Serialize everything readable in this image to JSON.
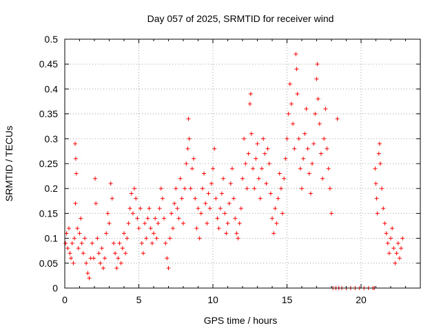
{
  "chart_data": {
    "type": "scatter",
    "title": "Day 057 of 2025, SRMTID for receiver wind",
    "xlabel": "GPS time / hours",
    "ylabel": "SRMTID / TECUs",
    "xlim": [
      0,
      24
    ],
    "ylim": [
      0,
      0.5
    ],
    "xticks": [
      0,
      5,
      10,
      15,
      20
    ],
    "xtick_labels": [
      "0",
      "5",
      "10",
      "15",
      "20"
    ],
    "yticks": [
      0,
      0.05,
      0.1,
      0.15,
      0.2,
      0.25,
      0.3,
      0.35,
      0.4,
      0.45,
      0.5
    ],
    "ytick_labels": [
      "0",
      "0.05",
      "0.1",
      "0.15",
      "0.2",
      "0.25",
      "0.3",
      "0.35",
      "0.4",
      "0.45",
      "0.5"
    ],
    "grid": true,
    "marker": "+",
    "marker_color": "#ff0000",
    "series": [
      {
        "name": "SRMTID",
        "points": [
          [
            0.05,
            0.09
          ],
          [
            0.12,
            0.11
          ],
          [
            0.2,
            0.08
          ],
          [
            0.28,
            0.12
          ],
          [
            0.35,
            0.07
          ],
          [
            0.42,
            0.06
          ],
          [
            0.5,
            0.09
          ],
          [
            0.58,
            0.05
          ],
          [
            0.65,
            0.1
          ],
          [
            0.72,
            0.17
          ],
          [
            0.7,
            0.29
          ],
          [
            0.74,
            0.26
          ],
          [
            0.78,
            0.23
          ],
          [
            0.85,
            0.12
          ],
          [
            0.92,
            0.08
          ],
          [
            1.0,
            0.11
          ],
          [
            1.08,
            0.14
          ],
          [
            1.15,
            0.09
          ],
          [
            1.25,
            0.07
          ],
          [
            1.35,
            0.1
          ],
          [
            1.45,
            0.05
          ],
          [
            1.55,
            0.03
          ],
          [
            1.65,
            0.02
          ],
          [
            1.75,
            0.06
          ],
          [
            1.85,
            0.09
          ],
          [
            1.95,
            0.06
          ],
          [
            2.05,
            0.22
          ],
          [
            2.1,
            0.17
          ],
          [
            2.2,
            0.1
          ],
          [
            2.3,
            0.07
          ],
          [
            2.4,
            0.05
          ],
          [
            2.5,
            0.08
          ],
          [
            2.6,
            0.04
          ],
          [
            2.7,
            0.06
          ],
          [
            2.8,
            0.11
          ],
          [
            2.9,
            0.15
          ],
          [
            3.0,
            0.13
          ],
          [
            3.1,
            0.21
          ],
          [
            3.2,
            0.18
          ],
          [
            3.3,
            0.09
          ],
          [
            3.4,
            0.07
          ],
          [
            3.5,
            0.04
          ],
          [
            3.6,
            0.06
          ],
          [
            3.7,
            0.09
          ],
          [
            3.8,
            0.05
          ],
          [
            3.9,
            0.08
          ],
          [
            4.0,
            0.11
          ],
          [
            4.1,
            0.07
          ],
          [
            4.2,
            0.1
          ],
          [
            4.3,
            0.13
          ],
          [
            4.4,
            0.16
          ],
          [
            4.5,
            0.19
          ],
          [
            4.6,
            0.15
          ],
          [
            4.7,
            0.2
          ],
          [
            4.8,
            0.18
          ],
          [
            4.9,
            0.14
          ],
          [
            5.0,
            0.12
          ],
          [
            5.1,
            0.16
          ],
          [
            5.2,
            0.09
          ],
          [
            5.3,
            0.07
          ],
          [
            5.4,
            0.13
          ],
          [
            5.5,
            0.1
          ],
          [
            5.6,
            0.14
          ],
          [
            5.7,
            0.16
          ],
          [
            5.8,
            0.12
          ],
          [
            5.9,
            0.09
          ],
          [
            6.0,
            0.11
          ],
          [
            6.1,
            0.14
          ],
          [
            6.2,
            0.1
          ],
          [
            6.3,
            0.13
          ],
          [
            6.4,
            0.16
          ],
          [
            6.5,
            0.2
          ],
          [
            6.6,
            0.18
          ],
          [
            6.7,
            0.14
          ],
          [
            6.8,
            0.09
          ],
          [
            6.9,
            0.06
          ],
          [
            7.0,
            0.04
          ],
          [
            7.1,
            0.1
          ],
          [
            7.2,
            0.15
          ],
          [
            7.3,
            0.12
          ],
          [
            7.4,
            0.17
          ],
          [
            7.5,
            0.2
          ],
          [
            7.6,
            0.16
          ],
          [
            7.7,
            0.14
          ],
          [
            7.8,
            0.22
          ],
          [
            7.9,
            0.18
          ],
          [
            8.0,
            0.13
          ],
          [
            8.1,
            0.2
          ],
          [
            8.2,
            0.25
          ],
          [
            8.3,
            0.28
          ],
          [
            8.35,
            0.34
          ],
          [
            8.4,
            0.3
          ],
          [
            8.5,
            0.2
          ],
          [
            8.6,
            0.24
          ],
          [
            8.7,
            0.26
          ],
          [
            8.8,
            0.18
          ],
          [
            8.9,
            0.12
          ],
          [
            9.0,
            0.16
          ],
          [
            9.1,
            0.1
          ],
          [
            9.2,
            0.15
          ],
          [
            9.3,
            0.2
          ],
          [
            9.4,
            0.23
          ],
          [
            9.5,
            0.17
          ],
          [
            9.6,
            0.13
          ],
          [
            9.7,
            0.19
          ],
          [
            9.8,
            0.16
          ],
          [
            9.9,
            0.21
          ],
          [
            10.0,
            0.24
          ],
          [
            10.1,
            0.28
          ],
          [
            10.2,
            0.18
          ],
          [
            10.3,
            0.14
          ],
          [
            10.4,
            0.12
          ],
          [
            10.5,
            0.16
          ],
          [
            10.6,
            0.19
          ],
          [
            10.7,
            0.22
          ],
          [
            10.8,
            0.15
          ],
          [
            10.9,
            0.11
          ],
          [
            11.0,
            0.13
          ],
          [
            11.1,
            0.17
          ],
          [
            11.2,
            0.21
          ],
          [
            11.3,
            0.24
          ],
          [
            11.4,
            0.18
          ],
          [
            11.5,
            0.14
          ],
          [
            11.6,
            0.11
          ],
          [
            11.7,
            0.1
          ],
          [
            11.8,
            0.13
          ],
          [
            11.9,
            0.16
          ],
          [
            12.0,
            0.22
          ],
          [
            12.1,
            0.3
          ],
          [
            12.2,
            0.25
          ],
          [
            12.3,
            0.2
          ],
          [
            12.4,
            0.27
          ],
          [
            12.5,
            0.37
          ],
          [
            12.55,
            0.39
          ],
          [
            12.6,
            0.31
          ],
          [
            12.7,
            0.24
          ],
          [
            12.8,
            0.2
          ],
          [
            12.9,
            0.26
          ],
          [
            13.0,
            0.29
          ],
          [
            13.1,
            0.22
          ],
          [
            13.2,
            0.18
          ],
          [
            13.3,
            0.24
          ],
          [
            13.4,
            0.3
          ],
          [
            13.5,
            0.27
          ],
          [
            13.6,
            0.21
          ],
          [
            13.7,
            0.28
          ],
          [
            13.8,
            0.25
          ],
          [
            13.9,
            0.19
          ],
          [
            14.0,
            0.14
          ],
          [
            14.1,
            0.11
          ],
          [
            14.2,
            0.16
          ],
          [
            14.3,
            0.13
          ],
          [
            14.4,
            0.18
          ],
          [
            14.5,
            0.23
          ],
          [
            14.6,
            0.2
          ],
          [
            14.7,
            0.15
          ],
          [
            14.8,
            0.22
          ],
          [
            14.9,
            0.26
          ],
          [
            15.0,
            0.3
          ],
          [
            15.1,
            0.35
          ],
          [
            15.2,
            0.41
          ],
          [
            15.3,
            0.37
          ],
          [
            15.4,
            0.33
          ],
          [
            15.5,
            0.28
          ],
          [
            15.6,
            0.47
          ],
          [
            15.65,
            0.44
          ],
          [
            15.7,
            0.39
          ],
          [
            15.8,
            0.3
          ],
          [
            15.9,
            0.24
          ],
          [
            16.0,
            0.2
          ],
          [
            16.1,
            0.26
          ],
          [
            16.2,
            0.31
          ],
          [
            16.3,
            0.36
          ],
          [
            16.4,
            0.28
          ],
          [
            16.5,
            0.23
          ],
          [
            16.6,
            0.19
          ],
          [
            16.7,
            0.25
          ],
          [
            16.8,
            0.29
          ],
          [
            16.9,
            0.35
          ],
          [
            17.0,
            0.42
          ],
          [
            17.05,
            0.45
          ],
          [
            17.1,
            0.38
          ],
          [
            17.2,
            0.33
          ],
          [
            17.3,
            0.27
          ],
          [
            17.4,
            0.22
          ],
          [
            17.5,
            0.3
          ],
          [
            17.6,
            0.36
          ],
          [
            17.7,
            0.28
          ],
          [
            17.8,
            0.24
          ],
          [
            17.9,
            0.2
          ],
          [
            18.0,
            0.15
          ],
          [
            18.1,
            0.0
          ],
          [
            18.3,
            0.0
          ],
          [
            18.5,
            0.0
          ],
          [
            18.7,
            0.0
          ],
          [
            18.4,
            0.34
          ],
          [
            19.0,
            0.0
          ],
          [
            19.3,
            0.0
          ],
          [
            19.6,
            0.0
          ],
          [
            19.9,
            0.0
          ],
          [
            20.2,
            0.0
          ],
          [
            20.5,
            0.0
          ],
          [
            20.8,
            0.0
          ],
          [
            20.9,
            0.0
          ],
          [
            20.95,
            0.24
          ],
          [
            21.0,
            0.21
          ],
          [
            21.05,
            0.18
          ],
          [
            21.1,
            0.15
          ],
          [
            21.2,
            0.27
          ],
          [
            21.25,
            0.29
          ],
          [
            21.3,
            0.25
          ],
          [
            21.4,
            0.2
          ],
          [
            21.5,
            0.16
          ],
          [
            21.6,
            0.13
          ],
          [
            21.7,
            0.11
          ],
          [
            21.8,
            0.09
          ],
          [
            21.9,
            0.07
          ],
          [
            22.0,
            0.1
          ],
          [
            22.1,
            0.12
          ],
          [
            22.2,
            0.08
          ],
          [
            22.3,
            0.05
          ],
          [
            22.4,
            0.07
          ],
          [
            22.5,
            0.09
          ],
          [
            22.6,
            0.06
          ],
          [
            22.7,
            0.08
          ],
          [
            22.8,
            0.1
          ]
        ]
      }
    ]
  }
}
